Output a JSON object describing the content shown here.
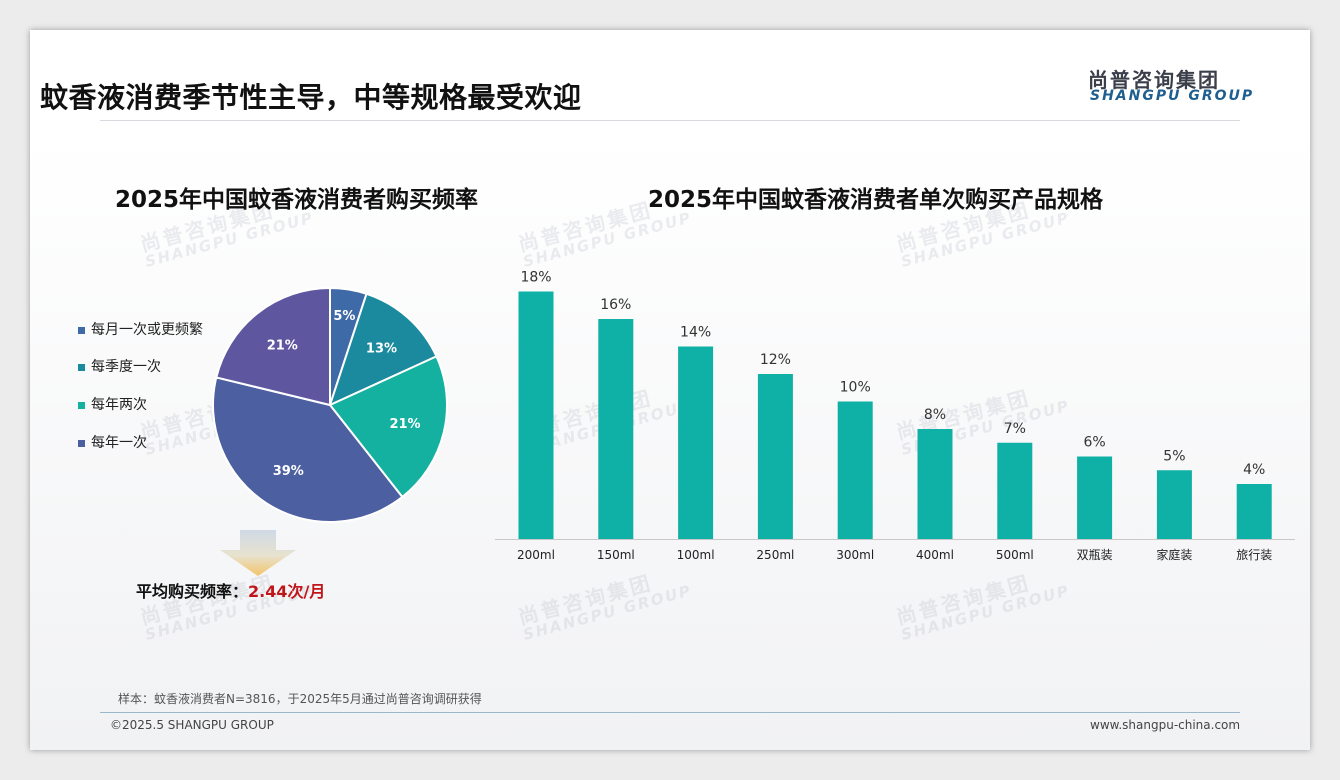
{
  "header": {
    "title": "蚊香液消费季节性主导，中等规格最受欢迎",
    "brand_cn": "尚普咨询集团",
    "brand_en": "SHANGPU GROUP"
  },
  "watermark": {
    "cn": "尚普咨询集团",
    "en": "SHANGPU GROUP"
  },
  "colors": {
    "slice1": "#3f6aa8",
    "slice2": "#1c8a9e",
    "slice3": "#14b0a0",
    "slice4": "#4c5fa0",
    "slice5": "#5e57a0",
    "bar": "#0fb0a5",
    "avg_value": "#c0161b"
  },
  "chart_data": [
    {
      "type": "pie",
      "title": "2025年中国蚊香液消费者购买频率",
      "slices": [
        {
          "label": "每月一次或更频繁",
          "value": 5,
          "display": "5%"
        },
        {
          "label": "",
          "value": 13,
          "display": "13%"
        },
        {
          "label": "每季度一次",
          "value": 21,
          "display": "21%"
        },
        {
          "label": "每年两次",
          "value": 39,
          "display": "39%"
        },
        {
          "label": "每年一次",
          "value": 21,
          "display": "21%"
        }
      ],
      "legend": [
        "每月一次或更频繁",
        "每季度一次",
        "每年两次",
        "每年一次"
      ],
      "legend_placement": "left"
    },
    {
      "type": "bar",
      "title": "2025年中国蚊香液消费者单次购买产品规格",
      "categories": [
        "200ml",
        "150ml",
        "100ml",
        "250ml",
        "300ml",
        "400ml",
        "500ml",
        "双瓶装",
        "家庭装",
        "旅行装"
      ],
      "values": [
        18,
        16,
        14,
        12,
        10,
        8,
        7,
        6,
        5,
        4
      ],
      "value_labels": [
        "18%",
        "16%",
        "14%",
        "12%",
        "10%",
        "8%",
        "7%",
        "6%",
        "5%",
        "4%"
      ],
      "ylim": [
        0,
        20
      ]
    }
  ],
  "summary": {
    "avg_label": "平均购买频率：",
    "avg_value": "2.44次/月"
  },
  "footer": {
    "sample_note": "样本：蚊香液消费者N=3816，于2025年5月通过尚普咨询调研获得",
    "copyright": "©2025.5 SHANGPU GROUP",
    "website": "www.shangpu-china.com"
  }
}
